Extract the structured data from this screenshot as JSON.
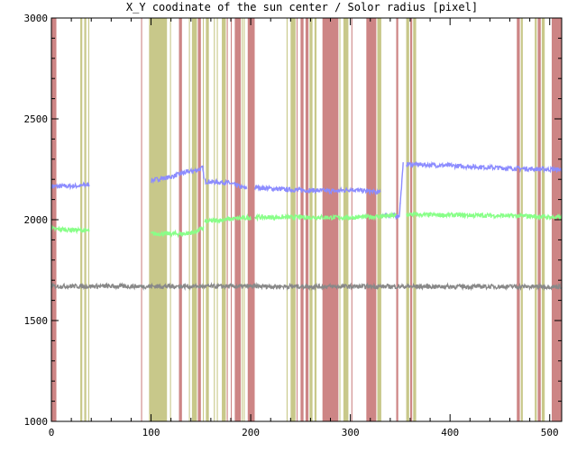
{
  "chart_data": {
    "type": "line",
    "title": "X_Y coodinate of the sun center / Solor radius [pixel]",
    "xlabel": "",
    "ylabel": "",
    "xlim": [
      0,
      512
    ],
    "ylim": [
      1000,
      3000
    ],
    "xticks": [
      0,
      100,
      200,
      300,
      400,
      500
    ],
    "yticks": [
      1000,
      1500,
      2000,
      2500,
      3000
    ],
    "grid": false,
    "legend": "none",
    "bands": {
      "red": {
        "color": "#cd8585",
        "ranges": [
          [
            0,
            5
          ],
          [
            90,
            91
          ],
          [
            128,
            131
          ],
          [
            147,
            150
          ],
          [
            176,
            177
          ],
          [
            180,
            181
          ],
          [
            184,
            190
          ],
          [
            197,
            204
          ],
          [
            246,
            247
          ],
          [
            250,
            253
          ],
          [
            255,
            258
          ],
          [
            272,
            288
          ],
          [
            301,
            302
          ],
          [
            316,
            326
          ],
          [
            346,
            348
          ],
          [
            360,
            362
          ],
          [
            467,
            470
          ],
          [
            488,
            491
          ],
          [
            502,
            512
          ]
        ]
      },
      "olive": {
        "color": "#c8c88a",
        "ranges": [
          [
            29,
            31
          ],
          [
            33,
            35
          ],
          [
            37,
            38
          ],
          [
            98,
            116
          ],
          [
            119,
            120
          ],
          [
            138,
            139
          ],
          [
            141,
            146
          ],
          [
            152,
            153
          ],
          [
            155,
            158
          ],
          [
            163,
            164
          ],
          [
            166,
            167
          ],
          [
            171,
            175
          ],
          [
            191,
            192
          ],
          [
            193,
            194
          ],
          [
            236,
            237
          ],
          [
            240,
            245
          ],
          [
            259,
            262
          ],
          [
            264,
            266
          ],
          [
            289,
            290
          ],
          [
            293,
            298
          ],
          [
            327,
            331
          ],
          [
            356,
            359
          ],
          [
            363,
            366
          ],
          [
            471,
            473
          ],
          [
            485,
            487
          ],
          [
            492,
            495
          ]
        ]
      }
    },
    "series": [
      {
        "color": "#8c8cff",
        "segments": [
          [
            [
              0,
              2165
            ],
            [
              30,
              2168
            ],
            [
              38,
              2175
            ]
          ],
          [
            [
              100,
              2195
            ],
            [
              120,
              2212
            ],
            [
              132,
              2232
            ],
            [
              148,
              2248
            ],
            [
              152,
              2258
            ],
            [
              153,
              2200
            ]
          ],
          [
            [
              154,
              2190
            ],
            [
              178,
              2183
            ],
            [
              186,
              2168
            ],
            [
              196,
              2155
            ]
          ],
          [
            [
              204,
              2160
            ],
            [
              240,
              2148
            ],
            [
              286,
              2142
            ],
            [
              300,
              2150
            ],
            [
              330,
              2135
            ]
          ],
          [
            [
              332,
              2025
            ],
            [
              349,
              2018
            ],
            [
              350,
              2080
            ],
            [
              353,
              2275
            ]
          ],
          [
            [
              356,
              2275
            ],
            [
              400,
              2268
            ],
            [
              460,
              2255
            ],
            [
              512,
              2248
            ]
          ]
        ]
      },
      {
        "color": "#88ff88",
        "segments": [
          [
            [
              0,
              1955
            ],
            [
              38,
              1945
            ]
          ],
          [
            [
              100,
              1930
            ],
            [
              134,
              1930
            ],
            [
              145,
              1940
            ],
            [
              153,
              1960
            ]
          ],
          [
            [
              154,
              1990
            ],
            [
              190,
              2008
            ],
            [
              200,
              2010
            ]
          ],
          [
            [
              204,
              2012
            ],
            [
              270,
              2012
            ],
            [
              300,
              2010
            ],
            [
              346,
              2020
            ]
          ],
          [
            [
              356,
              2025
            ],
            [
              420,
              2022
            ],
            [
              480,
              2018
            ],
            [
              512,
              2010
            ]
          ]
        ]
      },
      {
        "color": "#888888",
        "segments": [
          [
            [
              0,
              1670
            ],
            [
              512,
              1668
            ]
          ]
        ]
      }
    ]
  }
}
